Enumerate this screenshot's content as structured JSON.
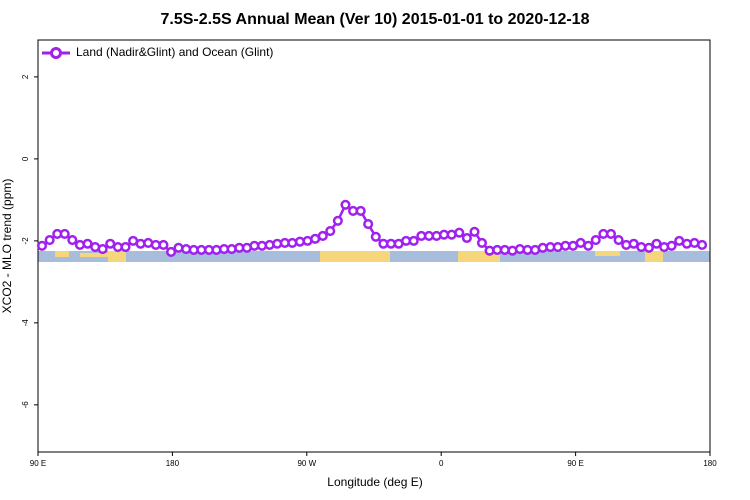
{
  "chart_data": {
    "type": "line",
    "title": "7.5S-2.5S Annual Mean (Ver 10)   2015-01-01 to 2020-12-18",
    "x_label": "Longitude (deg E)",
    "y_label": "XCO2 - MLO trend (ppm)",
    "xlim": [
      90,
      540
    ],
    "xticks": [
      {
        "value": 90,
        "label": "90 E"
      },
      180,
      {
        "value": 270,
        "label": "90 W"
      },
      {
        "value": 360,
        "label": "0"
      },
      {
        "value": 450,
        "label": "90 E"
      },
      {
        "value": 540,
        "label": "180"
      }
    ],
    "ylim": [
      -7.15,
      2.9
    ],
    "yticks": [
      2,
      0,
      -2,
      -4,
      -6
    ],
    "legend": "top-left",
    "x": [
      92.7,
      97.8,
      102.9,
      107.9,
      113.0,
      118.1,
      123.2,
      128.3,
      133.3,
      138.4,
      143.5,
      148.6,
      153.7,
      158.7,
      163.8,
      168.9,
      174.0,
      179.1,
      184.1,
      189.2,
      194.3,
      199.4,
      204.5,
      209.5,
      214.6,
      219.7,
      224.8,
      229.9,
      234.9,
      240.0,
      245.1,
      250.2,
      255.3,
      260.3,
      265.4,
      270.5,
      275.6,
      280.7,
      285.7,
      290.8,
      295.9,
      301.0,
      306.1,
      311.1,
      316.2,
      321.3,
      326.4,
      331.5,
      336.5,
      341.6,
      346.7,
      351.8,
      356.9,
      361.9,
      367.0,
      372.1,
      377.2,
      382.3,
      387.3,
      392.4,
      397.5,
      402.6,
      407.7,
      412.7,
      417.8,
      422.9,
      428.0,
      433.1,
      438.1,
      443.2,
      448.3,
      453.4,
      458.5,
      463.5,
      468.6,
      473.7,
      478.8,
      483.9,
      488.9,
      494.0,
      499.1,
      504.2,
      509.3,
      514.3,
      519.4,
      524.5,
      529.6,
      534.7
    ],
    "series": [
      {
        "name": "Land (Nadir&Glint) and Ocean (Glint)",
        "color": "#a020f0",
        "values": [
          -2.12,
          -1.98,
          -1.83,
          -1.83,
          -1.98,
          -2.1,
          -2.07,
          -2.15,
          -2.2,
          -2.07,
          -2.15,
          -2.15,
          -2.0,
          -2.07,
          -2.05,
          -2.1,
          -2.1,
          -2.27,
          -2.17,
          -2.2,
          -2.22,
          -2.22,
          -2.22,
          -2.22,
          -2.2,
          -2.2,
          -2.17,
          -2.17,
          -2.12,
          -2.12,
          -2.1,
          -2.07,
          -2.05,
          -2.05,
          -2.02,
          -2.0,
          -1.95,
          -1.88,
          -1.76,
          -1.51,
          -1.12,
          -1.27,
          -1.27,
          -1.59,
          -1.9,
          -2.07,
          -2.07,
          -2.07,
          -2.0,
          -2.0,
          -1.88,
          -1.88,
          -1.88,
          -1.85,
          -1.85,
          -1.8,
          -1.93,
          -1.78,
          -2.05,
          -2.24,
          -2.22,
          -2.22,
          -2.24,
          -2.2,
          -2.22,
          -2.22,
          -2.17,
          -2.15,
          -2.15,
          -2.12,
          -2.12,
          -2.05,
          -2.12,
          -1.98,
          -1.83,
          -1.83,
          -1.98,
          -2.1,
          -2.07,
          -2.15,
          -2.17,
          -2.07,
          -2.15,
          -2.12,
          -2.0,
          -2.07,
          -2.05,
          -2.1
        ]
      }
    ]
  }
}
